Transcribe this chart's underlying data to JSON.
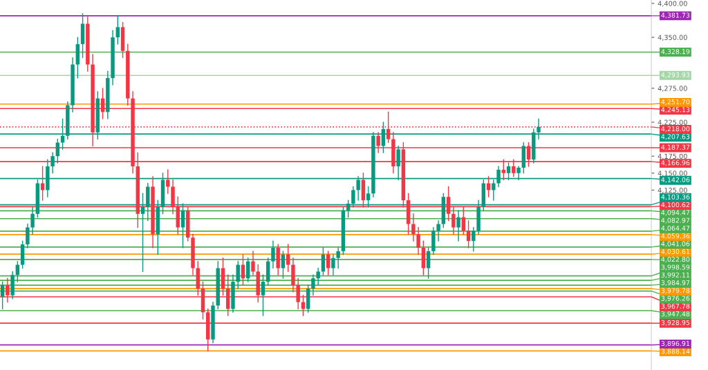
{
  "chart_data": {
    "type": "candlestick",
    "categories": [
      null,
      null,
      null,
      null,
      null,
      null,
      null,
      null,
      null,
      null,
      null,
      null,
      null,
      null,
      null,
      null,
      null,
      null,
      null,
      null,
      null,
      null,
      null,
      null,
      null,
      null,
      null,
      null,
      null,
      null,
      null,
      null,
      null,
      null,
      null,
      null,
      null,
      null,
      null,
      null,
      null,
      null,
      null,
      null,
      null,
      null,
      null,
      null,
      null,
      null,
      null,
      null,
      null,
      null,
      null,
      null,
      null,
      null,
      null,
      null,
      null,
      null,
      null,
      null,
      null,
      null,
      null,
      null,
      null,
      null,
      null,
      null,
      null,
      null,
      null,
      null,
      null,
      null,
      null,
      null,
      null,
      null,
      null,
      null,
      null,
      null,
      null,
      null,
      null,
      null,
      null,
      null,
      null,
      null,
      null,
      null,
      null,
      null,
      null,
      null,
      null,
      null,
      null,
      null,
      null,
      null,
      null,
      null,
      null,
      null,
      null,
      null,
      null,
      null,
      null,
      null,
      null,
      null,
      null,
      null,
      null,
      null,
      null,
      null,
      null,
      null,
      null,
      null,
      null,
      null
    ],
    "ohlc": [
      [
        3968,
        3990,
        3950,
        3985
      ],
      [
        3985,
        3995,
        3960,
        3970
      ],
      [
        3970,
        4005,
        3965,
        4000
      ],
      [
        4000,
        4020,
        3990,
        4015
      ],
      [
        4015,
        4050,
        4010,
        4045
      ],
      [
        4045,
        4075,
        4040,
        4070
      ],
      [
        4070,
        4100,
        4060,
        4090
      ],
      [
        4090,
        4140,
        4085,
        4135
      ],
      [
        4135,
        4160,
        4110,
        4125
      ],
      [
        4125,
        4170,
        4115,
        4160
      ],
      [
        4160,
        4180,
        4150,
        4175
      ],
      [
        4175,
        4200,
        4165,
        4195
      ],
      [
        4195,
        4230,
        4185,
        4205
      ],
      [
        4205,
        4255,
        4200,
        4250
      ],
      [
        4250,
        4320,
        4240,
        4310
      ],
      [
        4310,
        4350,
        4290,
        4340
      ],
      [
        4340,
        4385,
        4320,
        4370
      ],
      [
        4370,
        4380,
        4300,
        4310
      ],
      [
        4310,
        4325,
        4190,
        4210
      ],
      [
        4210,
        4270,
        4200,
        4260
      ],
      [
        4260,
        4275,
        4230,
        4240
      ],
      [
        4240,
        4300,
        4230,
        4290
      ],
      [
        4290,
        4360,
        4280,
        4350
      ],
      [
        4350,
        4382,
        4340,
        4365
      ],
      [
        4365,
        4372,
        4320,
        4330
      ],
      [
        4330,
        4340,
        4250,
        4260
      ],
      [
        4260,
        4270,
        4150,
        4160
      ],
      [
        4160,
        4180,
        4070,
        4090
      ],
      [
        4090,
        4120,
        4005,
        4100
      ],
      [
        4100,
        4135,
        4080,
        4130
      ],
      [
        4130,
        4145,
        4040,
        4060
      ],
      [
        4060,
        4110,
        4030,
        4100
      ],
      [
        4100,
        4150,
        4090,
        4140
      ],
      [
        4140,
        4155,
        4120,
        4130
      ],
      [
        4130,
        4140,
        4090,
        4100
      ],
      [
        4100,
        4115,
        4060,
        4070
      ],
      [
        4070,
        4105,
        4040,
        4095
      ],
      [
        4095,
        4100,
        4050,
        4055
      ],
      [
        4055,
        4060,
        4000,
        4010
      ],
      [
        4010,
        4020,
        3970,
        3980
      ],
      [
        3980,
        3990,
        3935,
        3945
      ],
      [
        3945,
        3950,
        3888,
        3905
      ],
      [
        3905,
        3960,
        3900,
        3955
      ],
      [
        3955,
        4020,
        3950,
        4010
      ],
      [
        4010,
        4025,
        3970,
        3980
      ],
      [
        3980,
        4000,
        3940,
        3950
      ],
      [
        3950,
        4000,
        3945,
        3990
      ],
      [
        3990,
        4020,
        3980,
        4015
      ],
      [
        4015,
        4030,
        3985,
        3995
      ],
      [
        3995,
        4025,
        3990,
        4020
      ],
      [
        4020,
        4035,
        4000,
        4005
      ],
      [
        4005,
        4015,
        3960,
        3970
      ],
      [
        3970,
        4000,
        3940,
        3990
      ],
      [
        3990,
        4025,
        3985,
        4020
      ],
      [
        4020,
        4050,
        4010,
        4040
      ],
      [
        4040,
        4045,
        4000,
        4010
      ],
      [
        4010,
        4035,
        3995,
        4030
      ],
      [
        4030,
        4045,
        4005,
        4015
      ],
      [
        4015,
        4025,
        3975,
        3985
      ],
      [
        3985,
        3995,
        3950,
        3960
      ],
      [
        3960,
        3970,
        3940,
        3950
      ],
      [
        3950,
        3985,
        3945,
        3980
      ],
      [
        3980,
        4000,
        3970,
        3995
      ],
      [
        3995,
        4010,
        3985,
        4005
      ],
      [
        4005,
        4040,
        4000,
        4030
      ],
      [
        4030,
        4035,
        4000,
        4010
      ],
      [
        4010,
        4030,
        4000,
        4025
      ],
      [
        4025,
        4040,
        4010,
        4035
      ],
      [
        4035,
        4100,
        4030,
        4095
      ],
      [
        4095,
        4110,
        4085,
        4105
      ],
      [
        4105,
        4130,
        4100,
        4125
      ],
      [
        4125,
        4145,
        4110,
        4140
      ],
      [
        4140,
        4150,
        4100,
        4110
      ],
      [
        4110,
        4130,
        4100,
        4120
      ],
      [
        4120,
        4210,
        4115,
        4205
      ],
      [
        4205,
        4210,
        4180,
        4190
      ],
      [
        4190,
        4225,
        4180,
        4215
      ],
      [
        4215,
        4240,
        4195,
        4200
      ],
      [
        4200,
        4210,
        4150,
        4160
      ],
      [
        4160,
        4190,
        4140,
        4185
      ],
      [
        4185,
        4195,
        4100,
        4110
      ],
      [
        4110,
        4120,
        4060,
        4075
      ],
      [
        4075,
        4090,
        4050,
        4060
      ],
      [
        4060,
        4070,
        4030,
        4040
      ],
      [
        4040,
        4050,
        4000,
        4010
      ],
      [
        4010,
        4040,
        3995,
        4035
      ],
      [
        4035,
        4070,
        4030,
        4065
      ],
      [
        4065,
        4080,
        4050,
        4075
      ],
      [
        4075,
        4120,
        4070,
        4115
      ],
      [
        4115,
        4130,
        4080,
        4090
      ],
      [
        4090,
        4100,
        4060,
        4070
      ],
      [
        4070,
        4095,
        4050,
        4085
      ],
      [
        4085,
        4100,
        4060,
        4065
      ],
      [
        4065,
        4080,
        4040,
        4050
      ],
      [
        4050,
        4070,
        4035,
        4065
      ],
      [
        4065,
        4110,
        4060,
        4100
      ],
      [
        4100,
        4140,
        4095,
        4135
      ],
      [
        4135,
        4145,
        4115,
        4125
      ],
      [
        4125,
        4140,
        4110,
        4135
      ],
      [
        4135,
        4160,
        4130,
        4155
      ],
      [
        4155,
        4170,
        4140,
        4150
      ],
      [
        4150,
        4165,
        4140,
        4160
      ],
      [
        4160,
        4170,
        4145,
        4150
      ],
      [
        4150,
        4160,
        4140,
        4158
      ],
      [
        4158,
        4195,
        4150,
        4190
      ],
      [
        4190,
        4195,
        4160,
        4170
      ],
      [
        4170,
        4215,
        4165,
        4210
      ],
      [
        4210,
        4230,
        4200,
        4218
      ],
      null,
      null,
      null,
      null,
      null,
      null,
      null,
      null,
      null,
      null,
      null,
      null,
      null,
      null,
      null,
      null,
      null,
      null,
      null,
      null,
      null,
      null
    ],
    "ylim": [
      3860,
      4405
    ],
    "yticks": [
      {
        "value": 4400,
        "label": "4,400.00"
      },
      {
        "value": 4350,
        "label": "4,350.00"
      },
      {
        "value": 4275,
        "label": "4,275.00"
      },
      {
        "value": 4225,
        "label": "4,225.00"
      },
      {
        "value": 4175,
        "label": "4,175.00"
      },
      {
        "value": 4150,
        "label": "4,150.00"
      },
      {
        "value": 4125,
        "label": "4,125.00"
      }
    ],
    "ref_lines": [
      {
        "axis": "y",
        "value": 4381.73,
        "label": "4,381.73",
        "color": "#9c27b0"
      },
      {
        "axis": "y",
        "value": 4328.19,
        "label": "4,328.19",
        "color": "#4caf50"
      },
      {
        "axis": "y",
        "value": 4293.93,
        "label": "4,293.93",
        "color": "#a5d6a7"
      },
      {
        "axis": "y",
        "value": 4251.7,
        "label": "4,251.70",
        "color": "#ff9800"
      },
      {
        "axis": "y",
        "value": 4245.13,
        "label": "4,245.13",
        "color": "#f23645"
      },
      {
        "axis": "y",
        "value": 4218.0,
        "label": "4,218.00",
        "color": "#f23645",
        "line_style": "dotted"
      },
      {
        "axis": "y",
        "value": 4207.63,
        "label": "4,207.63",
        "color": "#089981"
      },
      {
        "axis": "y",
        "value": 4187.37,
        "label": "4,187.37",
        "color": "#f23645"
      },
      {
        "axis": "y",
        "value": 4166.96,
        "label": "4,166.96",
        "color": "#f23645"
      },
      {
        "axis": "y",
        "value": 4142.06,
        "label": "4,142.06",
        "color": "#089981"
      },
      {
        "axis": "y",
        "value": 4103.36,
        "label": "4,103.36",
        "color": "#089981"
      },
      {
        "axis": "y",
        "value": 4100.62,
        "label": "4,100.62",
        "color": "#f23645"
      },
      {
        "axis": "y",
        "value": 4094.47,
        "label": "4,094.47",
        "color": "#4caf50"
      },
      {
        "axis": "y",
        "value": 4082.97,
        "label": "4,082.97",
        "color": "#4caf50"
      },
      {
        "axis": "y",
        "value": 4064.47,
        "label": "4,064.47",
        "color": "#4caf50"
      },
      {
        "axis": "y",
        "value": 4059.36,
        "label": "4,059.36",
        "color": "#ff9800"
      },
      {
        "axis": "y",
        "value": 4041.06,
        "label": "4,041.06",
        "color": "#4caf50"
      },
      {
        "axis": "y",
        "value": 4030.61,
        "label": "4,030.61",
        "color": "#ff9800"
      },
      {
        "axis": "y",
        "value": 4022.8,
        "label": "4,022.80",
        "color": "#4caf50"
      },
      {
        "axis": "y",
        "value": 3998.59,
        "label": "3,998.59",
        "color": "#4caf50"
      },
      {
        "axis": "y",
        "value": 3992.11,
        "label": "3,992.11",
        "color": "#4caf50"
      },
      {
        "axis": "y",
        "value": 3984.97,
        "label": "3,984.97",
        "color": "#4caf50"
      },
      {
        "axis": "y",
        "value": 3979.78,
        "label": "3,979.78",
        "color": "#ff9800"
      },
      {
        "axis": "y",
        "value": 3976.26,
        "label": "3,976.26",
        "color": "#4caf50"
      },
      {
        "axis": "y",
        "value": 3967.78,
        "label": "3,967.78",
        "color": "#f23645"
      },
      {
        "axis": "y",
        "value": 3947.48,
        "label": "3,947.48",
        "color": "#4caf50"
      },
      {
        "axis": "y",
        "value": 3928.95,
        "label": "3,928.95",
        "color": "#f23645"
      },
      {
        "axis": "y",
        "value": 3896.91,
        "label": "3,896.91",
        "color": "#9c27b0"
      },
      {
        "axis": "y",
        "value": 3888.14,
        "label": "3,888.14",
        "color": "#ff9800"
      }
    ],
    "grid": false,
    "legend": false
  }
}
